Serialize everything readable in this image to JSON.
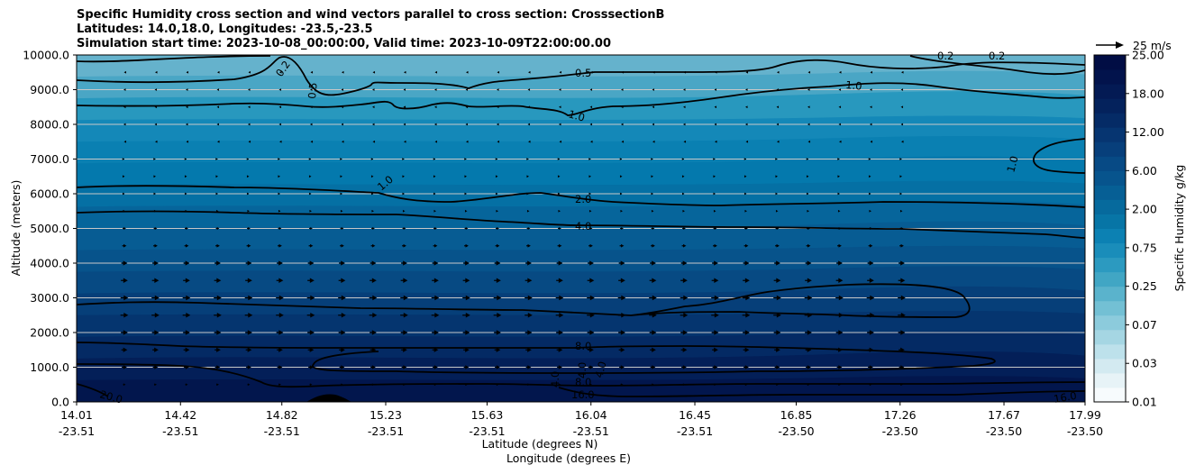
{
  "chart_data": {
    "type": "contour",
    "title": [
      "Specific Humidity cross section and wind vectors parallel to cross section: CrosssectionB",
      "Latitudes: 14.0,18.0, Longitudes: -23.5,-23.5",
      "Simulation start time: 2023-10-08_00:00:00, Valid time: 2023-10-09T22:00:00.00"
    ],
    "ylabel": "Altitude (meters)",
    "xlabel_lat": "Latitude (degrees N)",
    "xlabel_lon": "Longitude (degrees E)",
    "ylim": [
      0,
      10000
    ],
    "yticks": [
      "0.0",
      "1000.0",
      "2000.0",
      "3000.0",
      "4000.0",
      "5000.0",
      "6000.0",
      "7000.0",
      "8000.0",
      "9000.0",
      "10000.0"
    ],
    "xticks": [
      {
        "lat": "14.01",
        "lon": "-23.51"
      },
      {
        "lat": "14.42",
        "lon": "-23.51"
      },
      {
        "lat": "14.82",
        "lon": "-23.51"
      },
      {
        "lat": "15.23",
        "lon": "-23.51"
      },
      {
        "lat": "15.63",
        "lon": "-23.51"
      },
      {
        "lat": "16.04",
        "lon": "-23.51"
      },
      {
        "lat": "16.45",
        "lon": "-23.51"
      },
      {
        "lat": "16.85",
        "lon": "-23.50"
      },
      {
        "lat": "17.26",
        "lon": "-23.50"
      },
      {
        "lat": "17.67",
        "lon": "-23.50"
      },
      {
        "lat": "17.99",
        "lon": "-23.50"
      }
    ],
    "grid": "horizontal",
    "colorbar": {
      "label": "Specific Humidity g/kg",
      "ticks": [
        "0.01",
        "0.03",
        "0.07",
        "0.25",
        "0.75",
        "2.00",
        "6.00",
        "12.00",
        "18.00",
        "25.00"
      ],
      "colors": [
        "#f7fbfd",
        "#e7f3f7",
        "#d3eaf1",
        "#bde1eb",
        "#a5d6e3",
        "#8ccbdc",
        "#73c0d4",
        "#5ab3cc",
        "#41a6c4",
        "#2c9ac0",
        "#1a8dba",
        "#0c81b3",
        "#0775a6",
        "#066a9d",
        "#065f95",
        "#07548d",
        "#074a85",
        "#073f7b",
        "#063571",
        "#052b66",
        "#04225c",
        "#031a54",
        "#02134c",
        "#010d44"
      ]
    },
    "contour_levels": [
      0.2,
      0.5,
      1.0,
      2.0,
      4.0,
      8.0,
      16.0,
      20.0
    ],
    "contour_labels": [
      "0.2",
      "0.2",
      "0.2",
      "0.5",
      "0.5",
      "1.0",
      "1.0",
      "1.0",
      "1.0",
      "2.0",
      "4.0",
      "8.0",
      "8.0",
      "16.0",
      "16.0",
      "20.0",
      "4.0",
      "4.0",
      "4.0"
    ],
    "wind_reference": "25 m/s",
    "wind_profile": [
      {
        "altitude": 500,
        "u": 3
      },
      {
        "altitude": 1000,
        "u": 6
      },
      {
        "altitude": 1500,
        "u": 7
      },
      {
        "altitude": 2000,
        "u": 8
      },
      {
        "altitude": 2500,
        "u": 9
      },
      {
        "altitude": 3000,
        "u": 9
      },
      {
        "altitude": 3500,
        "u": 8
      },
      {
        "altitude": 4000,
        "u": 7
      },
      {
        "altitude": 4500,
        "u": 5
      },
      {
        "altitude": 5000,
        "u": 4
      },
      {
        "altitude": 5500,
        "u": 2
      },
      {
        "altitude": 6000,
        "u": 1
      },
      {
        "altitude": 6500,
        "u": 1
      },
      {
        "altitude": 7000,
        "u": 0.5
      },
      {
        "altitude": 7500,
        "u": -1
      },
      {
        "altitude": 8000,
        "u": -2
      },
      {
        "altitude": 8500,
        "u": -2
      },
      {
        "altitude": 9000,
        "u": -2
      },
      {
        "altitude": 9500,
        "u": -1
      }
    ]
  }
}
